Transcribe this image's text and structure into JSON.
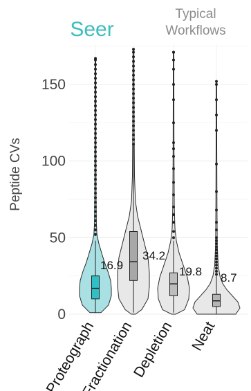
{
  "headers": {
    "seer": "Seer",
    "typical_line1": "Typical",
    "typical_line2": "Workflows",
    "seer_color": "#3dbdbd",
    "typical_color": "#8c8c8c"
  },
  "chart_data": {
    "type": "violin",
    "ylabel": "Peptide CVs",
    "ylim": [
      0,
      175
    ],
    "yticks": [
      0,
      50,
      100,
      150
    ],
    "grid": true,
    "categories": [
      "Proteograph",
      "Fractionation",
      "Depletion",
      "Neat"
    ],
    "medians": [
      16.9,
      34.2,
      19.8,
      8.7
    ],
    "median_labels": [
      "16.9",
      "34.2",
      "19.8",
      "8.7"
    ],
    "quartiles": [
      [
        10,
        25
      ],
      [
        22,
        54
      ],
      [
        12,
        27
      ],
      [
        5,
        13
      ]
    ],
    "whiskers": [
      [
        1,
        48
      ],
      [
        1,
        110
      ],
      [
        1,
        48
      ],
      [
        0,
        25
      ]
    ],
    "max_values": [
      167,
      173,
      171,
      152
    ],
    "colors": {
      "Proteograph": "#a9e0e3",
      "Fractionation": "#e8e8e8",
      "Depletion": "#e8e8e8",
      "Neat": "#e8e8e8"
    },
    "box_colors": {
      "Proteograph": "#2fbfc4",
      "Fractionation": "#a8a8a8",
      "Depletion": "#bdbdbd",
      "Neat": "#b5b5b5"
    }
  }
}
